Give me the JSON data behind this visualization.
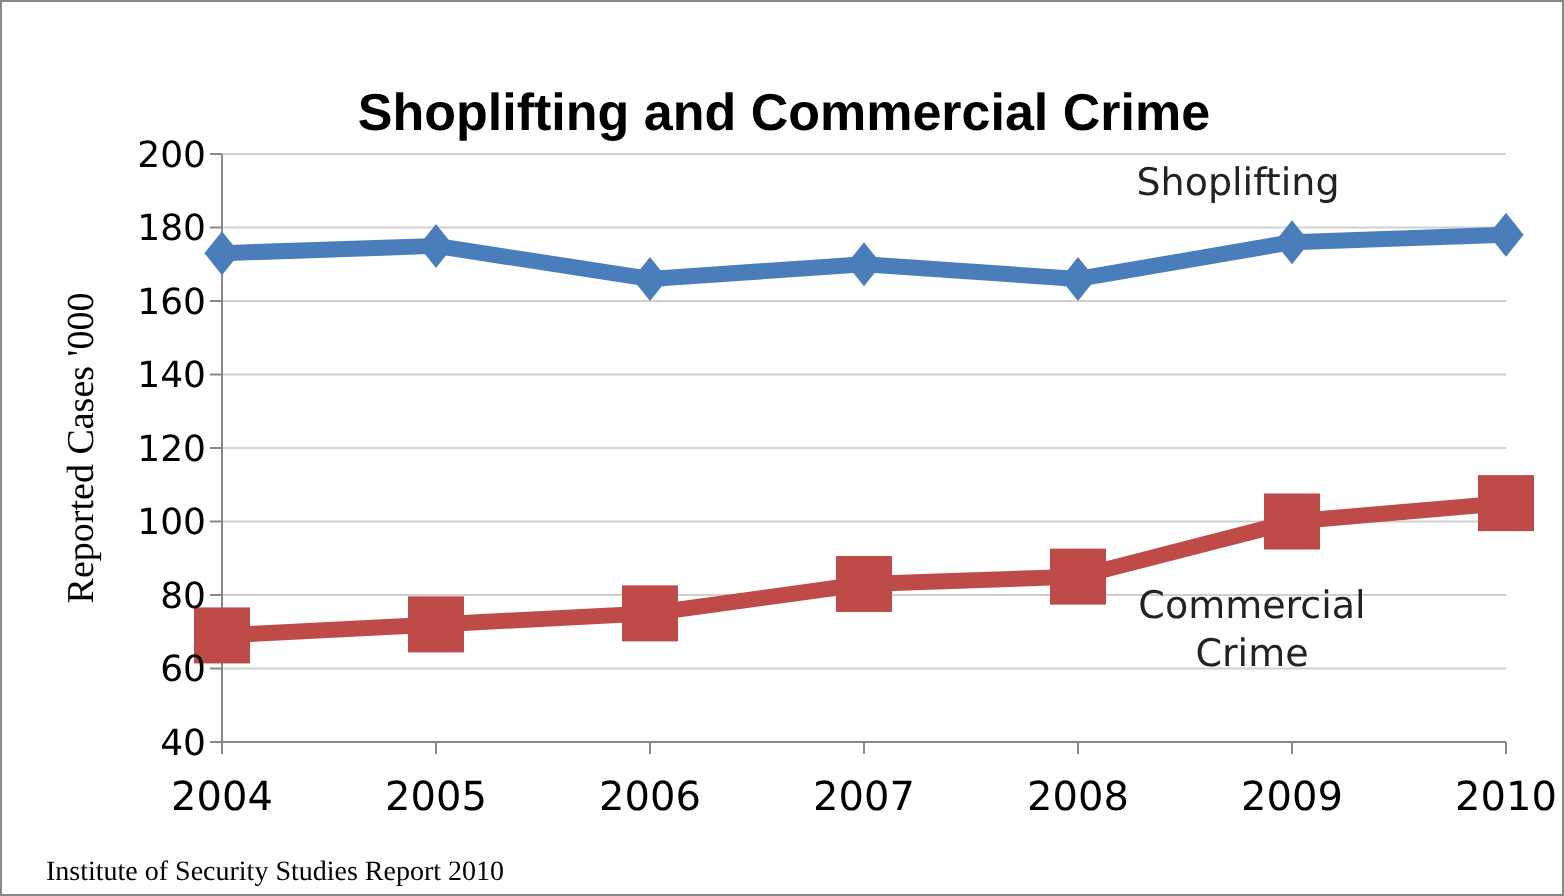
{
  "chart_data": {
    "type": "line",
    "title": "Shoplifting and Commercial Crime",
    "ylabel": "Reported Cases  '000",
    "annotations": [
      "Institute of Security Studies Report 2010"
    ],
    "x": [
      2004,
      2005,
      2006,
      2007,
      2008,
      2009,
      2010
    ],
    "series": [
      {
        "name": "Shoplifting",
        "color": "#4a7ebb",
        "marker": "diamond",
        "values": [
          173,
          175,
          166,
          170,
          166,
          176,
          178
        ]
      },
      {
        "name": "Commercial Crime",
        "color": "#be4b48",
        "marker": "square",
        "values": [
          69,
          72,
          75,
          83,
          85,
          100,
          105
        ]
      }
    ],
    "xlim": [
      2004,
      2010
    ],
    "xticks": [
      2004,
      2005,
      2006,
      2007,
      2008,
      2009,
      2010
    ],
    "ylim": [
      40,
      200
    ],
    "yticks": [
      40,
      60,
      80,
      100,
      120,
      140,
      160,
      180,
      200
    ],
    "grid": "y",
    "legend": false,
    "line_style": "solid"
  }
}
